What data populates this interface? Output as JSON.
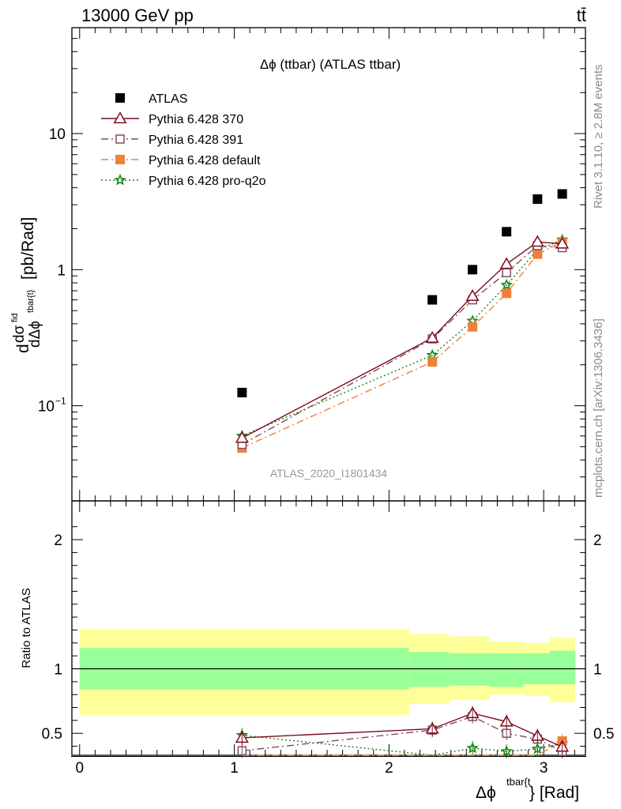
{
  "header": {
    "left": "13000 GeV pp",
    "right": "tt̄"
  },
  "side_labels": {
    "rivet": "Rivet 3.1.10, ≥ 2.8M events",
    "mcplots": "mcplots.cern.ch [arXiv:1306.3436]"
  },
  "chart_data": {
    "type": "scatter",
    "title": "Δϕ (ttbar) (ATLAS ttbar)",
    "watermark": "ATLAS_2020_I1801434",
    "xlabel": "Δϕ^{tbar{t}} [Rad]",
    "xlabel_base": "Δϕ",
    "xlabel_sup": "tbar{t",
    "xlabel_tail": "} [Rad]",
    "ylabel": "dσ^{fid}/dΔϕ^{tbar{t}} [pb/Rad]",
    "ylabel_parts": {
      "d_top": "d",
      "sigma": "dσ",
      "fid": "fid",
      "denominator": "dΔϕ",
      "denominator_sup": "tbar{t}",
      "unit": "[pb/Rad]"
    },
    "ratio_ylabel": "Ratio to ATLAS",
    "x_range": [
      -0.05,
      3.27
    ],
    "main_y_range": [
      0.02,
      60
    ],
    "main_y_scale": "log",
    "ratio_y_range": [
      0.33,
      2.3
    ],
    "x_ticks": [
      {
        "value": 0,
        "label": "0"
      },
      {
        "value": 1,
        "label": "1"
      },
      {
        "value": 2,
        "label": "2"
      },
      {
        "value": 3,
        "label": "3"
      }
    ],
    "main_y_ticks": [
      {
        "value": 0.1,
        "label": "10",
        "sup": "−1"
      },
      {
        "value": 1,
        "label": "1",
        "sup": ""
      },
      {
        "value": 10,
        "label": "10",
        "sup": ""
      }
    ],
    "ratio_y_ticks": [
      {
        "value": 0.5,
        "label": "0.5"
      },
      {
        "value": 1,
        "label": "1"
      },
      {
        "value": 2,
        "label": "2"
      }
    ],
    "x": [
      1.05,
      2.28,
      2.54,
      2.76,
      2.96,
      3.12
    ],
    "bin_edges": [
      0,
      2.13,
      2.39,
      2.65,
      2.87,
      3.04,
      3.205
    ],
    "legend_position": "top-left",
    "series": [
      {
        "name": "ATLAS",
        "key": "atlas",
        "values": [
          0.125,
          0.6,
          1.0,
          1.9,
          3.3,
          3.6
        ],
        "color": "#000000",
        "marker": "square-filled",
        "line": "none"
      },
      {
        "name": "Pythia 6.428 370",
        "key": "p370",
        "values": [
          0.058,
          0.315,
          0.64,
          1.1,
          1.6,
          1.55
        ],
        "ratio": [
          0.465,
          0.535,
          0.655,
          0.59,
          0.48,
          0.395
        ],
        "color": "#7f0b1e",
        "marker": "triangle-open",
        "line": "solid"
      },
      {
        "name": "Pythia 6.428 391",
        "key": "p391",
        "values": [
          0.052,
          0.31,
          0.6,
          0.95,
          1.5,
          1.45
        ],
        "ratio": [
          0.365,
          0.525,
          0.63,
          0.5,
          0.455,
          0.36
        ],
        "color": "#7f4f5f",
        "marker": "square-open",
        "line": "dashdot"
      },
      {
        "name": "Pythia 6.428 default",
        "key": "pdef",
        "values": [
          0.049,
          0.21,
          0.38,
          0.67,
          1.3,
          1.6
        ],
        "ratio": [
          0.28,
          0.27,
          0.29,
          0.26,
          0.31,
          0.44
        ],
        "color": "#f07f3a",
        "marker": "square-filled",
        "line": "dashdot"
      },
      {
        "name": "Pythia 6.428 pro-q2o",
        "key": "pq2o",
        "values": [
          0.06,
          0.235,
          0.42,
          0.77,
          1.4,
          1.65
        ],
        "ratio": [
          0.485,
          0.32,
          0.385,
          0.36,
          0.38,
          0.42
        ],
        "color": "#188518",
        "marker": "star-open",
        "line": "dotted"
      }
    ],
    "ratio_bands": {
      "inner": [
        [
          0.84,
          1.16
        ],
        [
          0.86,
          1.13
        ],
        [
          0.87,
          1.12
        ],
        [
          0.86,
          1.12
        ],
        [
          0.88,
          1.12
        ],
        [
          0.88,
          1.14
        ]
      ],
      "outer": [
        [
          0.64,
          1.31
        ],
        [
          0.73,
          1.27
        ],
        [
          0.76,
          1.25
        ],
        [
          0.8,
          1.21
        ],
        [
          0.79,
          1.2
        ],
        [
          0.74,
          1.24
        ]
      ],
      "inner_color": "#99ff99",
      "outer_color": "#ffff99"
    }
  }
}
